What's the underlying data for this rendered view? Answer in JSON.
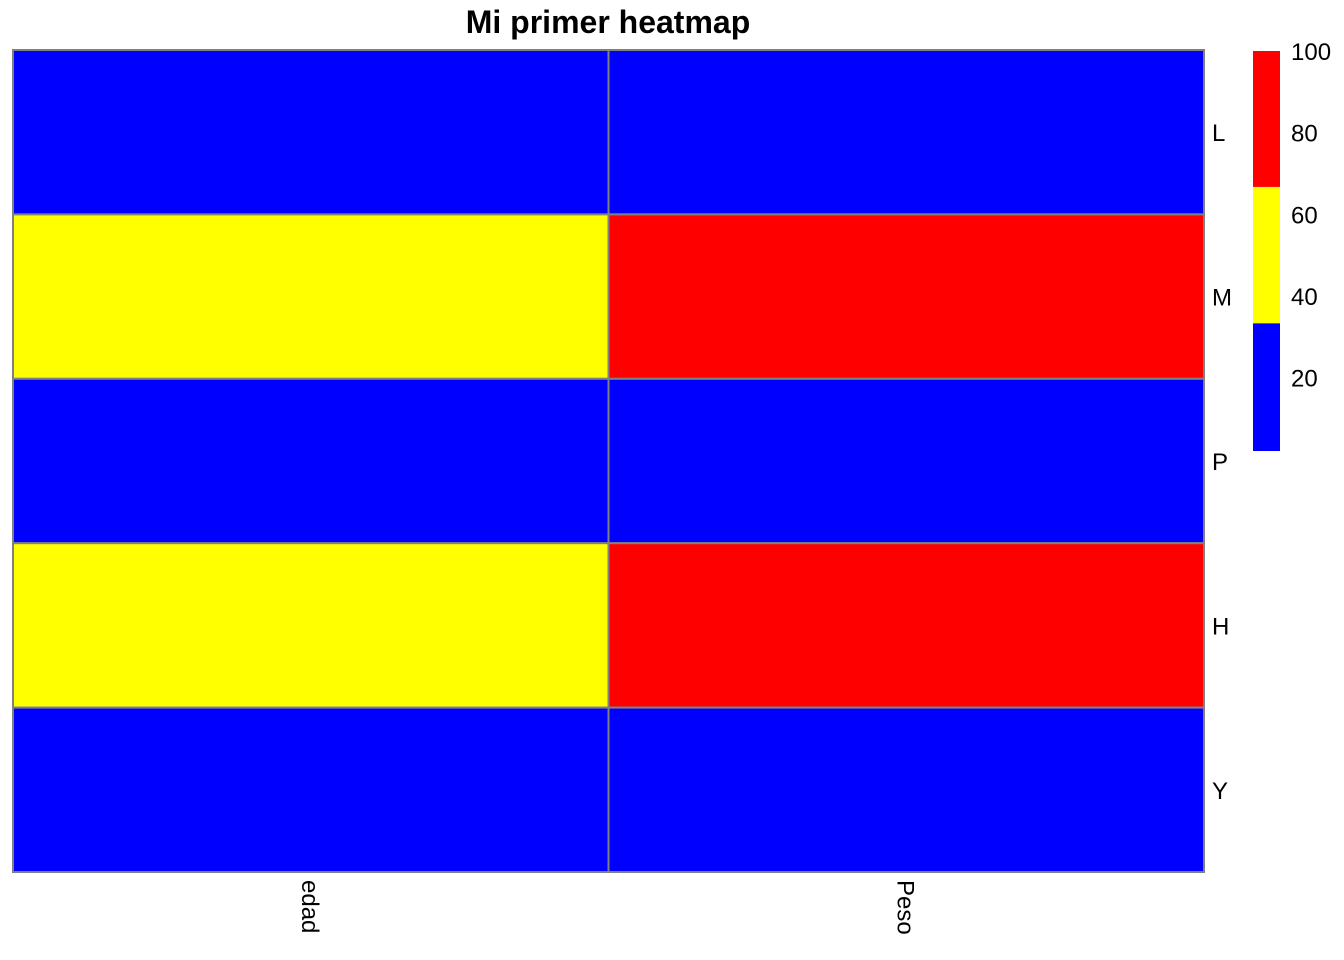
{
  "chart_data": {
    "type": "heatmap",
    "title": "Mi primer heatmap",
    "columns": [
      "edad",
      "Peso"
    ],
    "rows": [
      "L",
      "M",
      "P",
      "H",
      "Y"
    ],
    "values": [
      [
        20,
        20
      ],
      [
        50,
        90
      ],
      [
        20,
        20
      ],
      [
        50,
        90
      ],
      [
        20,
        20
      ]
    ],
    "color_scale": {
      "breaks": [
        0,
        33.3,
        66.7,
        100
      ],
      "colors": [
        "#0000FF",
        "#FFFF00",
        "#FF0000"
      ],
      "ticks": [
        20,
        40,
        60,
        80,
        100
      ],
      "range": [
        2,
        100
      ]
    },
    "cell_border_color": "#808080",
    "legend_position": "top-right"
  }
}
